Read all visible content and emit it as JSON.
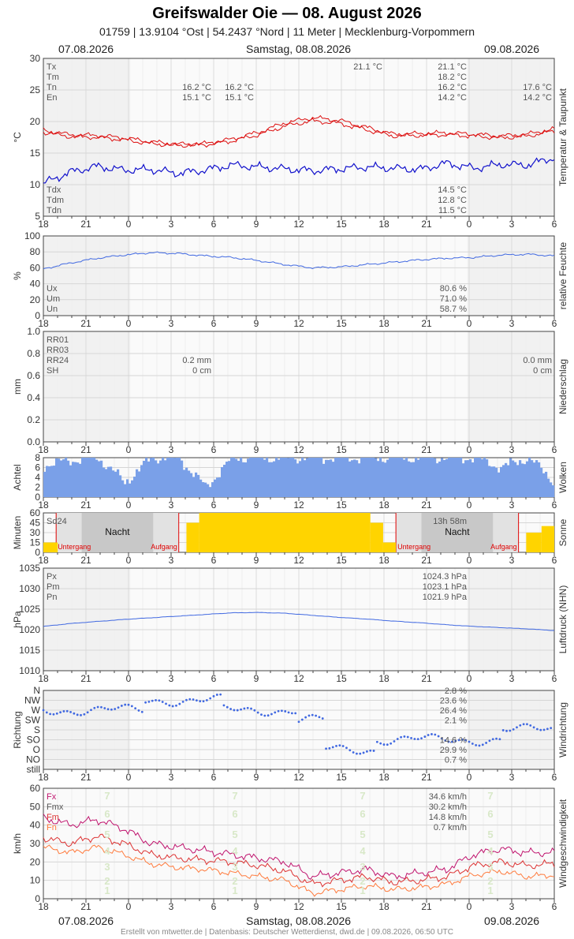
{
  "header": {
    "title": "Greifswalder Oie  —  08. August 2026",
    "subtitle": "01759  |  13.9104 °Ost  |  54.2437 °Nord  |  11 Meter  |  Mecklenburg-Vorpommern",
    "date_left": "07.08.2026",
    "date_center": "Samstag, 08.08.2026",
    "date_right": "09.08.2026"
  },
  "footer": "Erstellt von mtwetter.de | Datenbasis: Deutscher Wetterdienst, dwd.de | 09.08.2026, 06:50 UTC",
  "colors": {
    "red": "#dd1111",
    "blue": "#1111cc",
    "royal": "#4169e1",
    "cloud": "#7aa0e8",
    "sun": "#ffd400",
    "magenta": "#c0146e",
    "orange": "#ff7a3c",
    "night": "#c8c8c8"
  },
  "x_ticks": [
    "18",
    "21",
    "0",
    "3",
    "6",
    "9",
    "12",
    "15",
    "18",
    "21",
    "0",
    "3",
    "6"
  ],
  "panels": {
    "temp": {
      "ylabel": "°C",
      "side": "Temperatur & Taupunkt",
      "ylim": [
        5,
        30
      ],
      "yticks": [
        "30",
        "25",
        "20",
        "15",
        "10",
        "5"
      ],
      "stats_left": [
        "Tx",
        "Tm",
        "Tn",
        "En"
      ],
      "stats_left_low": [
        "Tdx",
        "Tdm",
        "Tdn"
      ],
      "day1": {
        "Tn": "16.2 °C",
        "En": "15.1 °C",
        "Tn2": "16.2 °C",
        "En2": "15.1 °C"
      },
      "day2": {
        "Tx": "21.1 °C",
        "Tx_peak": "21.1 °C",
        "Tm": "18.2 °C",
        "Tn": "16.2 °C",
        "En": "14.2 °C",
        "Tdx": "14.5 °C",
        "Tdm": "12.8 °C",
        "Tdn": "11.5 °C"
      },
      "day3": {
        "Tn": "17.6 °C",
        "En": "14.2 °C"
      }
    },
    "hum": {
      "ylabel": "%",
      "side": "relative Feuchte",
      "ylim": [
        0,
        100
      ],
      "yticks": [
        "100",
        "80",
        "60",
        "40",
        "20",
        "0"
      ],
      "stats_left": [
        "Ux",
        "Um",
        "Un"
      ],
      "stats_vals": [
        "80.6 %",
        "71.0 %",
        "58.7 %"
      ]
    },
    "rain": {
      "ylabel": "mm",
      "side": "Niederschlag",
      "ylim": [
        0,
        1
      ],
      "yticks": [
        "1.0",
        "0.8",
        "0.6",
        "0.4",
        "0.2",
        "0.0"
      ],
      "stats_left": [
        "RR01",
        "RR03",
        "RR24",
        "SH"
      ],
      "day1": [
        "0.2 mm",
        "0 cm"
      ],
      "day3": [
        "0.0 mm",
        "0 cm"
      ]
    },
    "cloud": {
      "ylabel": "Achtel",
      "side": "Wolken",
      "ylim": [
        0,
        8
      ],
      "yticks": [
        "8",
        "6",
        "4",
        "2",
        "0"
      ]
    },
    "sun": {
      "ylabel": "Minuten",
      "side": "Sonne",
      "ylim": [
        0,
        60
      ],
      "yticks": [
        "60",
        "45",
        "30",
        "15",
        "0"
      ],
      "sd_label": "Sd24",
      "sd_value": "13h 58m",
      "night": "Nacht",
      "sunset": "Untergang",
      "sunrise": "Aufgang"
    },
    "press": {
      "ylabel": "hPa",
      "side": "Luftdruck (NHN)",
      "ylim": [
        1010,
        1035
      ],
      "yticks": [
        "1035",
        "1030",
        "1025",
        "1020",
        "1015",
        "1010"
      ],
      "stats_left": [
        "Px",
        "Pm",
        "Pn"
      ],
      "stats_vals": [
        "1024.3 hPa",
        "1023.1 hPa",
        "1021.9 hPa"
      ]
    },
    "wdir": {
      "ylabel": "Richtung",
      "side": "Windrichtung",
      "yticks": [
        "N",
        "NW",
        "W",
        "SW",
        "S",
        "SO",
        "O",
        "NO",
        "still"
      ],
      "stats_vals": [
        "2.8 %",
        "23.6 %",
        "26.4 %",
        "2.1 %",
        "",
        "14.6 %",
        "29.9 %",
        "0.7 %"
      ]
    },
    "wind": {
      "ylabel": "km/h",
      "side": "Windgeschwindigkeit",
      "ylim": [
        0,
        60
      ],
      "yticks": [
        "60",
        "50",
        "40",
        "30",
        "20",
        "10",
        "0"
      ],
      "stats_left": [
        "Fx",
        "Fmx",
        "Fm",
        "Fn"
      ],
      "stats_vals": [
        "34.6 km/h",
        "30.2 km/h",
        "14.8 km/h",
        "0.7 km/h"
      ],
      "bft": [
        "1",
        "2",
        "3",
        "4",
        "5",
        "6",
        "7"
      ]
    }
  },
  "chart_data": [
    {
      "type": "line",
      "series": [
        {
          "name": "Tm",
          "values": [
            18.6,
            17.9,
            17.8,
            17.4,
            16.8,
            16.4,
            16.5,
            17.2,
            18.3,
            19.8,
            20.6,
            20.2,
            19.1,
            18.0,
            18.1,
            18.2,
            18.0,
            17.7,
            18.0,
            18.8
          ]
        },
        {
          "name": "Tn",
          "values": [
            18.3,
            17.6,
            17.5,
            17.1,
            16.5,
            16.2,
            16.3,
            16.9,
            17.9,
            19.3,
            20.1,
            19.7,
            18.7,
            17.7,
            17.8,
            17.9,
            17.7,
            17.4,
            17.7,
            18.5
          ]
        },
        {
          "name": "Td",
          "values": [
            10.2,
            12.0,
            12.9,
            12.3,
            12.4,
            11.8,
            12.3,
            13.1,
            12.8,
            12.5,
            12.2,
            12.5,
            12.8,
            12.6,
            12.4,
            13.4,
            12.6,
            13.2,
            13.1,
            14.3
          ]
        }
      ]
    },
    {
      "type": "line",
      "series": [
        {
          "name": "U",
          "values": [
            58.7,
            66,
            72,
            76,
            79,
            78,
            75,
            73,
            69,
            64,
            60,
            61,
            64,
            67,
            70,
            72,
            73,
            76,
            77,
            75
          ]
        }
      ]
    },
    {
      "type": "bar",
      "series": [
        {
          "name": "N",
          "values": [
            6.5,
            7.5,
            8,
            3,
            8,
            8,
            2,
            8,
            8,
            8,
            8,
            8,
            8,
            8,
            8,
            8,
            8,
            6,
            8,
            3
          ]
        }
      ]
    },
    {
      "type": "bar",
      "series": [
        {
          "name": "SD",
          "values": [
            15,
            0,
            0,
            0,
            0,
            60,
            60,
            60,
            60,
            60,
            60,
            60,
            60,
            0,
            0,
            0,
            0,
            0,
            0,
            40
          ]
        }
      ]
    },
    {
      "type": "line",
      "series": [
        {
          "name": "P",
          "values": [
            1020.8,
            1021.5,
            1022.0,
            1022.5,
            1022.9,
            1023.3,
            1023.7,
            1024.1,
            1024.2,
            1024.0,
            1023.5,
            1023.0,
            1022.6,
            1022.1,
            1021.7,
            1021.2,
            1020.8,
            1020.5,
            1020.2,
            1019.8
          ]
        }
      ]
    },
    {
      "type": "scatter",
      "series": [
        {
          "name": "dd",
          "values": [
            "W",
            "W",
            "W",
            "W",
            "NW",
            "NW",
            "NW",
            "W",
            "W",
            "W",
            "SW",
            "O",
            "O",
            "SO",
            "SO",
            "SO",
            "SO",
            "SO",
            "S",
            "S"
          ]
        }
      ]
    },
    {
      "type": "line",
      "series": [
        {
          "name": "Fx",
          "values": [
            44,
            40,
            43,
            38,
            30,
            28,
            26,
            24,
            22,
            20,
            12,
            14,
            16,
            12,
            14,
            16,
            24,
            27,
            25,
            25
          ]
        },
        {
          "name": "Fm",
          "values": [
            33,
            30,
            34,
            30,
            24,
            22,
            21,
            20,
            18,
            15,
            8,
            10,
            12,
            9,
            10,
            12,
            18,
            20,
            18,
            19
          ]
        },
        {
          "name": "Fn",
          "values": [
            28,
            25,
            28,
            24,
            19,
            17,
            16,
            14,
            12,
            10,
            3,
            5,
            7,
            5,
            6,
            8,
            13,
            15,
            12,
            13
          ]
        }
      ]
    }
  ]
}
